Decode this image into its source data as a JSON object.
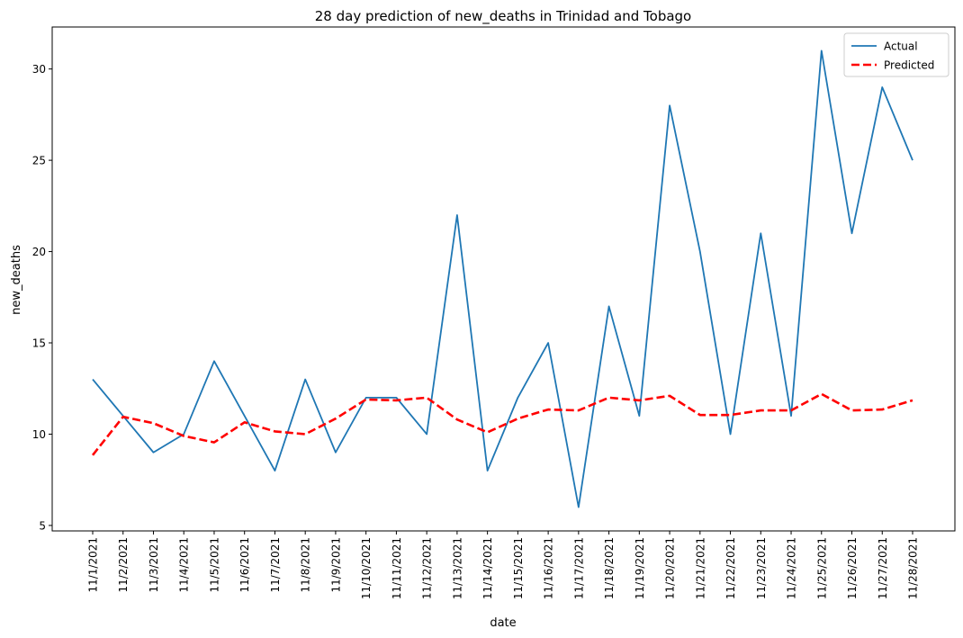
{
  "chart_data": {
    "type": "line",
    "title": "28 day prediction of new_deaths in Trinidad and Tobago",
    "xlabel": "date",
    "ylabel": "new_deaths",
    "ylim": [
      4.7,
      32.3
    ],
    "yticks": [
      5,
      10,
      15,
      20,
      25,
      30
    ],
    "grid": false,
    "legend_position": "top-right",
    "categories": [
      "11/1/2021",
      "11/2/2021",
      "11/3/2021",
      "11/4/2021",
      "11/5/2021",
      "11/6/2021",
      "11/7/2021",
      "11/8/2021",
      "11/9/2021",
      "11/10/2021",
      "11/11/2021",
      "11/12/2021",
      "11/13/2021",
      "11/14/2021",
      "11/15/2021",
      "11/16/2021",
      "11/17/2021",
      "11/18/2021",
      "11/19/2021",
      "11/20/2021",
      "11/21/2021",
      "11/22/2021",
      "11/23/2021",
      "11/24/2021",
      "11/25/2021",
      "11/26/2021",
      "11/27/2021",
      "11/28/2021"
    ],
    "series": [
      {
        "name": "Actual",
        "color": "#1f77b4",
        "style": "solid",
        "values": [
          13,
          11,
          9,
          10,
          14,
          11,
          8,
          13,
          9,
          12,
          12,
          10,
          22,
          8,
          12,
          15,
          6,
          17,
          11,
          28,
          20,
          10,
          21,
          11,
          31,
          21,
          29,
          25
        ]
      },
      {
        "name": "Predicted",
        "color": "#ff0000",
        "style": "dashed",
        "values": [
          8.85,
          10.95,
          10.6,
          9.9,
          9.55,
          10.65,
          10.15,
          10.0,
          10.85,
          11.9,
          11.85,
          12.0,
          10.8,
          10.1,
          10.85,
          11.35,
          11.3,
          12.0,
          11.85,
          12.1,
          11.05,
          11.05,
          11.3,
          11.3,
          12.2,
          11.3,
          11.35,
          11.85
        ]
      }
    ]
  }
}
